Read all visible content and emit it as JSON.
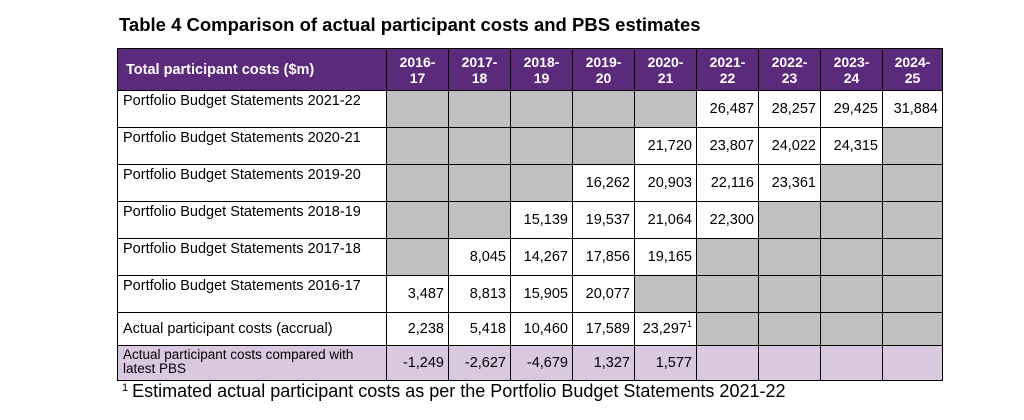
{
  "title": "Table 4 Comparison of actual participant costs and PBS estimates",
  "table": {
    "corner_label": "Total participant costs ($m)",
    "columns": [
      "2016-\n17",
      "2017-\n18",
      "2018-\n19",
      "2019-\n20",
      "2020-\n21",
      "2021-\n22",
      "2022-\n23",
      "2023-\n24",
      "2024-\n25"
    ],
    "rows": [
      {
        "label": "Portfolio Budget Statements 2021-22",
        "values": [
          "",
          "",
          "",
          "",
          "",
          "26,487",
          "28,257",
          "29,425",
          "31,884"
        ]
      },
      {
        "label": "Portfolio Budget Statements 2020-21",
        "values": [
          "",
          "",
          "",
          "",
          "21,720",
          "23,807",
          "24,022",
          "24,315",
          ""
        ]
      },
      {
        "label": "Portfolio Budget Statements 2019-20",
        "values": [
          "",
          "",
          "",
          "16,262",
          "20,903",
          "22,116",
          "23,361",
          "",
          ""
        ]
      },
      {
        "label": "Portfolio Budget Statements 2018-19",
        "values": [
          "",
          "",
          "15,139",
          "19,537",
          "21,064",
          "22,300",
          "",
          "",
          ""
        ]
      },
      {
        "label": "Portfolio Budget Statements 2017-18",
        "values": [
          "",
          "8,045",
          "14,267",
          "17,856",
          "19,165",
          "",
          "",
          "",
          ""
        ]
      },
      {
        "label": "Portfolio Budget Statements 2016-17",
        "values": [
          "3,487",
          "8,813",
          "15,905",
          "20,077",
          "",
          "",
          "",
          "",
          ""
        ]
      },
      {
        "label": "Actual participant costs (accrual)",
        "values": [
          "2,238",
          "5,418",
          "10,460",
          "17,589",
          "23,297",
          "",
          "",
          "",
          ""
        ],
        "note_col": 4,
        "note_mark": "1"
      },
      {
        "label": "Actual participant costs compared with latest PBS",
        "values": [
          "-1,249",
          "-2,627",
          "-4,679",
          "1,327",
          "1,577",
          "",
          "",
          "",
          ""
        ],
        "highlight": true
      }
    ],
    "colors": {
      "header_bg": "#5b2a7a",
      "empty_cell": "#c0c0c0",
      "highlight_row": "#d9c8e0"
    }
  },
  "footnote": {
    "mark": "1",
    "text": "Estimated actual participant costs as per the Portfolio Budget Statements 2021-22"
  }
}
